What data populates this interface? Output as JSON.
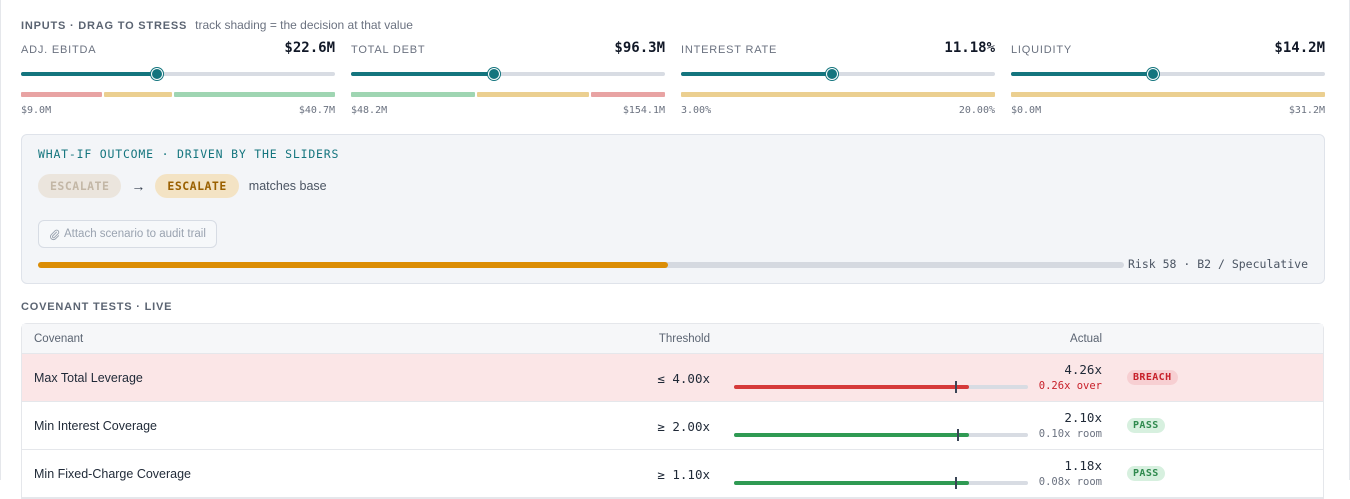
{
  "inputs": {
    "title": "INPUTS · DRAG TO STRESS",
    "hint": "track shading = the decision at that value",
    "sliders": [
      {
        "label": "ADJ. EBITDA",
        "value": "$22.6M",
        "min": "$9.0M",
        "max": "$40.7M",
        "fraction": 0.433,
        "zones": [
          {
            "color": "#e8a3a3",
            "share": 0.26
          },
          {
            "color": "#ebcf90",
            "share": 0.22
          },
          {
            "color": "#9fd5b2",
            "share": 0.52
          }
        ]
      },
      {
        "label": "TOTAL DEBT",
        "value": "$96.3M",
        "min": "$48.2M",
        "max": "$154.1M",
        "fraction": 0.454,
        "zones": [
          {
            "color": "#9fd5b2",
            "share": 0.4
          },
          {
            "color": "#ebcf90",
            "share": 0.36
          },
          {
            "color": "#e8a3a3",
            "share": 0.24
          }
        ]
      },
      {
        "label": "INTEREST RATE",
        "value": "11.18%",
        "min": "3.00%",
        "max": "20.00%",
        "fraction": 0.48,
        "zones": [
          {
            "color": "#ebcf90",
            "share": 1.0
          }
        ]
      },
      {
        "label": "LIQUIDITY",
        "value": "$14.2M",
        "min": "$0.0M",
        "max": "$31.2M",
        "fraction": 0.453,
        "zones": [
          {
            "color": "#ebcf90",
            "share": 1.0
          }
        ]
      }
    ]
  },
  "whatif": {
    "title": "WHAT-IF OUTCOME · DRIVEN BY THE SLIDERS",
    "base_decision": "ESCALATE",
    "arrow": "→",
    "new_decision": "ESCALATE",
    "compare_note": "matches base",
    "attach_icon": "paperclip-icon",
    "attach_label": "Attach scenario to audit trail",
    "risk_fraction": 0.58,
    "risk_label": "Risk 58 · B2 / Speculative"
  },
  "covenants": {
    "title": "COVENANT TESTS · LIVE",
    "columns": {
      "name": "Covenant",
      "threshold": "Threshold",
      "actual": "Actual"
    },
    "rows": [
      {
        "name": "Max Total Leverage",
        "threshold": "≤ 4.00x",
        "actual": "4.26x",
        "detail": "0.26x over",
        "status": "BREACH",
        "level": 0.8,
        "tick": 0.75,
        "state": "breach"
      },
      {
        "name": "Min Interest Coverage",
        "threshold": "≥ 2.00x",
        "actual": "2.10x",
        "detail": "0.10x room",
        "status": "PASS",
        "level": 0.8,
        "tick": 0.76,
        "state": "pass"
      },
      {
        "name": "Min Fixed-Charge Coverage",
        "threshold": "≥ 1.10x",
        "actual": "1.18x",
        "detail": "0.08x room",
        "status": "PASS",
        "level": 0.8,
        "tick": 0.75,
        "state": "pass"
      }
    ]
  },
  "colors": {
    "accent": "#14757e",
    "risk": "#db8d05",
    "breach_bar": "#d63a3a",
    "breach_text": "#c8202a",
    "breach_badge_bg": "#f7cfd2",
    "pass_bar": "#2f9a53",
    "pass_text": "#2f8a4e",
    "pass_badge_bg": "#d7f0df",
    "muted_text": "#6b7280"
  }
}
